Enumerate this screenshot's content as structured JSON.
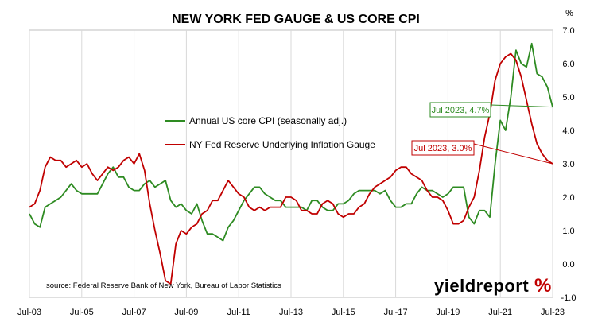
{
  "chart_data": {
    "type": "line",
    "title": "NEW YORK FED GAUGE & US CORE CPI",
    "ylabel": "%",
    "ylim": [
      -1.0,
      7.0
    ],
    "y_ticks": [
      "-1.0",
      "0.0",
      "1.0",
      "2.0",
      "3.0",
      "4.0",
      "5.0",
      "6.0",
      "7.0"
    ],
    "y_tick_values": [
      -1,
      0,
      1,
      2,
      3,
      4,
      5,
      6,
      7
    ],
    "x_ticks": [
      "Jul-03",
      "Jul-05",
      "Jul-07",
      "Jul-09",
      "Jul-11",
      "Jul-13",
      "Jul-15",
      "Jul-17",
      "Jul-19",
      "Jul-21",
      "Jul-23"
    ],
    "x_tick_values": [
      2003.5,
      2005.5,
      2007.5,
      2009.5,
      2011.5,
      2013.5,
      2015.5,
      2017.5,
      2019.5,
      2021.5,
      2023.5
    ],
    "xlim": [
      2003.5,
      2023.5
    ],
    "grid": "vertical",
    "legend_position": "center-left",
    "series": [
      {
        "name": "Annual US core CPI (seasonally adj.)",
        "color": "#2e8b22",
        "x": [
          2003.5,
          2003.7,
          2003.9,
          2004.1,
          2004.3,
          2004.5,
          2004.7,
          2004.9,
          2005.1,
          2005.3,
          2005.5,
          2005.7,
          2005.9,
          2006.1,
          2006.3,
          2006.5,
          2006.7,
          2006.9,
          2007.1,
          2007.3,
          2007.5,
          2007.7,
          2007.9,
          2008.1,
          2008.3,
          2008.5,
          2008.7,
          2008.9,
          2009.1,
          2009.3,
          2009.5,
          2009.7,
          2009.9,
          2010.1,
          2010.3,
          2010.5,
          2010.7,
          2010.9,
          2011.1,
          2011.3,
          2011.5,
          2011.7,
          2011.9,
          2012.1,
          2012.3,
          2012.5,
          2012.7,
          2012.9,
          2013.1,
          2013.3,
          2013.5,
          2013.7,
          2013.9,
          2014.1,
          2014.3,
          2014.5,
          2014.7,
          2014.9,
          2015.1,
          2015.3,
          2015.5,
          2015.7,
          2015.9,
          2016.1,
          2016.3,
          2016.5,
          2016.7,
          2016.9,
          2017.1,
          2017.3,
          2017.5,
          2017.7,
          2017.9,
          2018.1,
          2018.3,
          2018.5,
          2018.7,
          2018.9,
          2019.1,
          2019.3,
          2019.5,
          2019.7,
          2019.9,
          2020.1,
          2020.3,
          2020.5,
          2020.7,
          2020.9,
          2021.1,
          2021.3,
          2021.5,
          2021.7,
          2021.9,
          2022.1,
          2022.3,
          2022.5,
          2022.7,
          2022.9,
          2023.1,
          2023.3,
          2023.5
        ],
        "values": [
          1.5,
          1.2,
          1.1,
          1.7,
          1.8,
          1.9,
          2.0,
          2.2,
          2.4,
          2.2,
          2.1,
          2.1,
          2.1,
          2.1,
          2.4,
          2.7,
          2.9,
          2.6,
          2.6,
          2.3,
          2.2,
          2.2,
          2.4,
          2.5,
          2.3,
          2.4,
          2.5,
          1.9,
          1.7,
          1.8,
          1.6,
          1.5,
          1.8,
          1.3,
          0.9,
          0.9,
          0.8,
          0.7,
          1.1,
          1.3,
          1.6,
          1.9,
          2.1,
          2.3,
          2.3,
          2.1,
          2.0,
          1.9,
          1.9,
          1.7,
          1.7,
          1.7,
          1.7,
          1.6,
          1.9,
          1.9,
          1.7,
          1.6,
          1.6,
          1.8,
          1.8,
          1.9,
          2.1,
          2.2,
          2.2,
          2.2,
          2.2,
          2.1,
          2.2,
          1.9,
          1.7,
          1.7,
          1.8,
          1.8,
          2.1,
          2.3,
          2.2,
          2.2,
          2.1,
          2.0,
          2.1,
          2.3,
          2.3,
          2.3,
          1.4,
          1.2,
          1.6,
          1.6,
          1.4,
          3.0,
          4.3,
          4.0,
          5.0,
          6.4,
          6.0,
          5.9,
          6.6,
          5.7,
          5.6,
          5.3,
          4.7
        ]
      },
      {
        "name": "NY Fed Reserve Underlying Inflation Gauge",
        "color": "#c00000",
        "x": [
          2003.5,
          2003.7,
          2003.9,
          2004.1,
          2004.3,
          2004.5,
          2004.7,
          2004.9,
          2005.1,
          2005.3,
          2005.5,
          2005.7,
          2005.9,
          2006.1,
          2006.3,
          2006.5,
          2006.7,
          2006.9,
          2007.1,
          2007.3,
          2007.5,
          2007.7,
          2007.9,
          2008.1,
          2008.3,
          2008.5,
          2008.7,
          2008.9,
          2009.1,
          2009.3,
          2009.5,
          2009.7,
          2009.9,
          2010.1,
          2010.3,
          2010.5,
          2010.7,
          2010.9,
          2011.1,
          2011.3,
          2011.5,
          2011.7,
          2011.9,
          2012.1,
          2012.3,
          2012.5,
          2012.7,
          2012.9,
          2013.1,
          2013.3,
          2013.5,
          2013.7,
          2013.9,
          2014.1,
          2014.3,
          2014.5,
          2014.7,
          2014.9,
          2015.1,
          2015.3,
          2015.5,
          2015.7,
          2015.9,
          2016.1,
          2016.3,
          2016.5,
          2016.7,
          2016.9,
          2017.1,
          2017.3,
          2017.5,
          2017.7,
          2017.9,
          2018.1,
          2018.3,
          2018.5,
          2018.7,
          2018.9,
          2019.1,
          2019.3,
          2019.5,
          2019.7,
          2019.9,
          2020.1,
          2020.3,
          2020.5,
          2020.7,
          2020.9,
          2021.1,
          2021.3,
          2021.5,
          2021.7,
          2021.9,
          2022.1,
          2022.3,
          2022.5,
          2022.7,
          2022.9,
          2023.1,
          2023.3,
          2023.5
        ],
        "values": [
          1.7,
          1.8,
          2.2,
          2.9,
          3.2,
          3.1,
          3.1,
          2.9,
          3.0,
          3.1,
          2.9,
          3.0,
          2.7,
          2.5,
          2.7,
          2.9,
          2.8,
          2.9,
          3.1,
          3.2,
          3.0,
          3.3,
          2.8,
          1.8,
          1.0,
          0.3,
          -0.5,
          -0.6,
          0.6,
          1.0,
          0.9,
          1.1,
          1.2,
          1.5,
          1.6,
          1.9,
          1.9,
          2.2,
          2.5,
          2.3,
          2.1,
          2.0,
          1.7,
          1.6,
          1.7,
          1.6,
          1.7,
          1.7,
          1.7,
          2.0,
          2.0,
          1.9,
          1.6,
          1.6,
          1.5,
          1.5,
          1.8,
          1.9,
          1.8,
          1.5,
          1.4,
          1.5,
          1.5,
          1.7,
          1.8,
          2.1,
          2.3,
          2.4,
          2.5,
          2.6,
          2.8,
          2.9,
          2.9,
          2.7,
          2.6,
          2.5,
          2.2,
          2.0,
          2.0,
          1.9,
          1.6,
          1.2,
          1.2,
          1.3,
          1.7,
          2.0,
          2.8,
          3.8,
          4.5,
          5.5,
          6.0,
          6.2,
          6.3,
          6.1,
          5.6,
          4.9,
          4.2,
          3.6,
          3.3,
          3.1,
          3.0
        ]
      }
    ],
    "annotations": [
      {
        "text": "Jul 2023, 4.7%",
        "x": 2023.5,
        "y": 4.7,
        "color": "#2e8b22"
      },
      {
        "text": "Jul 2023, 3.0%",
        "x": 2023.5,
        "y": 3.0,
        "color": "#c00000"
      }
    ]
  },
  "footer": {
    "source": "source: Federal Reserve Bank of New York, Bureau of Labor Statistics",
    "brand": "yieldreport",
    "brand_pct": "%"
  }
}
